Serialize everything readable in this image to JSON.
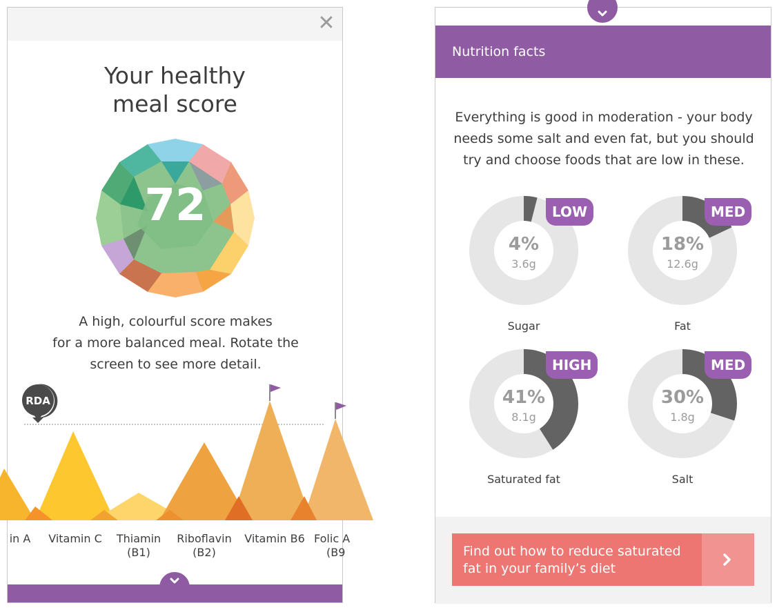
{
  "left": {
    "close_glyph": "✕",
    "title_lines": [
      "Your healthy",
      "meal score"
    ],
    "score": "72",
    "description_lines": [
      "A high, colourful score makes",
      "for a more balanced meal. Rotate the",
      "screen to see more detail."
    ],
    "rda_label": "RDA",
    "vitamins": [
      {
        "lines": [
          "in A"
        ]
      },
      {
        "lines": [
          "Vitamin C"
        ]
      },
      {
        "lines": [
          "Thiamin",
          "(B1)"
        ]
      },
      {
        "lines": [
          "Riboflavin",
          "(B2)"
        ]
      },
      {
        "lines": [
          "Vitamin B6"
        ]
      },
      {
        "lines": [
          "Folic A",
          "(B9"
        ]
      }
    ]
  },
  "right": {
    "header_title": "Nutrition facts",
    "intro_lines": [
      "Everything is good in moderation - your body",
      "needs some salt and even fat, but you should",
      "try and choose foods that are low in these."
    ],
    "nutrients": [
      {
        "label": "Sugar",
        "badge": "LOW",
        "percent_text": "4%",
        "grams": "3.6g",
        "percent": 4
      },
      {
        "label": "Fat",
        "badge": "MED",
        "percent_text": "18%",
        "grams": "12.6g",
        "percent": 18
      },
      {
        "label": "Saturated fat",
        "badge": "HIGH",
        "percent_text": "41%",
        "grams": "8.1g",
        "percent": 41
      },
      {
        "label": "Salt",
        "badge": "MED",
        "percent_text": "30%",
        "grams": "1.8g",
        "percent": 30
      }
    ],
    "cta_lines": [
      "Find out how to reduce saturated",
      "fat in your family’s diet"
    ]
  },
  "colors": {
    "purple": "#8f5ca3",
    "badge_purple": "#9a5fb0",
    "coral": "#ed7672",
    "donut_track": "#e6e6e6",
    "donut_fill": "#636363"
  },
  "icons": {
    "close": "close-icon",
    "toggle": "chevron-down-icon",
    "cta": "chevron-right-icon",
    "flag": "flag-icon",
    "rda": "map-pin-icon"
  }
}
